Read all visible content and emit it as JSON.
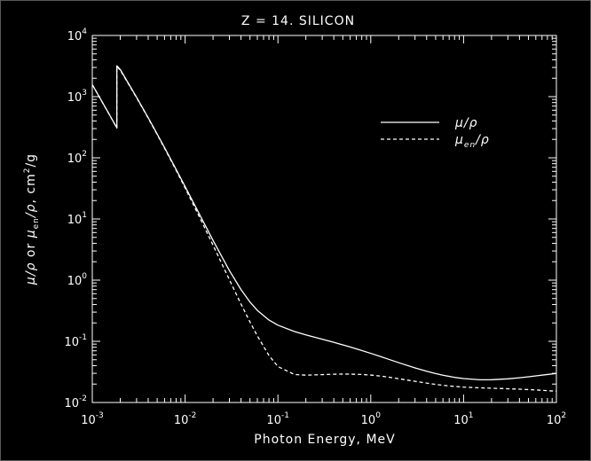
{
  "colors": {
    "background": "#000000",
    "foreground": "#ffffff"
  },
  "chart_data": {
    "type": "line",
    "title": "Z = 14.  SILICON",
    "xlabel": "Photon Energy, MeV",
    "ylabel": {
      "mu": "μ",
      "rho": "ρ",
      "or": "or",
      "en": "en",
      "units": "cm",
      "units_exp": "2",
      "units_tail": "/g"
    },
    "x_scale": "log",
    "y_scale": "log",
    "xlim": [
      0.001,
      100
    ],
    "ylim": [
      0.01,
      10000
    ],
    "x_ticks": [
      {
        "base": "10",
        "exp": "-3"
      },
      {
        "base": "10",
        "exp": "-2"
      },
      {
        "base": "10",
        "exp": "-1"
      },
      {
        "base": "10",
        "exp": "0"
      },
      {
        "base": "10",
        "exp": "1"
      },
      {
        "base": "10",
        "exp": "2"
      }
    ],
    "y_ticks": [
      {
        "base": "10",
        "exp": "-2"
      },
      {
        "base": "10",
        "exp": "-1"
      },
      {
        "base": "10",
        "exp": "0"
      },
      {
        "base": "10",
        "exp": "1"
      },
      {
        "base": "10",
        "exp": "2"
      },
      {
        "base": "10",
        "exp": "3"
      },
      {
        "base": "10",
        "exp": "4"
      }
    ],
    "legend": {
      "placement": "top-right",
      "entries": [
        {
          "mu": "μ",
          "sub": "",
          "rest": "/ρ",
          "style": "solid"
        },
        {
          "mu": "μ",
          "sub": "en",
          "rest": "/ρ",
          "style": "dashed"
        }
      ]
    },
    "series": [
      {
        "style": "solid",
        "points": [
          [
            0.001,
            1570
          ],
          [
            0.0015,
            535
          ],
          [
            0.001839,
            309
          ],
          [
            0.001839,
            3192
          ],
          [
            0.002,
            2777
          ],
          [
            0.003,
            978.4
          ],
          [
            0.004,
            452.9
          ],
          [
            0.005,
            245.0
          ],
          [
            0.006,
            147.0
          ],
          [
            0.008,
            64.68
          ],
          [
            0.01,
            33.89
          ],
          [
            0.015,
            10.34
          ],
          [
            0.02,
            4.464
          ],
          [
            0.03,
            1.436
          ],
          [
            0.04,
            0.7012
          ],
          [
            0.05,
            0.4385
          ],
          [
            0.06,
            0.3207
          ],
          [
            0.08,
            0.2228
          ],
          [
            0.1,
            0.1835
          ],
          [
            0.15,
            0.1448
          ],
          [
            0.2,
            0.1275
          ],
          [
            0.3,
            0.1082
          ],
          [
            0.4,
            0.09614
          ],
          [
            0.5,
            0.08748
          ],
          [
            0.6,
            0.08077
          ],
          [
            0.8,
            0.07082
          ],
          [
            1.0,
            0.06361
          ],
          [
            1.25,
            0.05688
          ],
          [
            1.5,
            0.05183
          ],
          [
            2.0,
            0.0448
          ],
          [
            3.0,
            0.03678
          ],
          [
            4.0,
            0.0324
          ],
          [
            5.0,
            0.02967
          ],
          [
            6.0,
            0.02788
          ],
          [
            8.0,
            0.02574
          ],
          [
            10.0,
            0.02462
          ],
          [
            15.0,
            0.02352
          ],
          [
            20.0,
            0.02355
          ],
          [
            30.0,
            0.02437
          ],
          [
            40.0,
            0.02535
          ],
          [
            50.0,
            0.0263
          ],
          [
            60.0,
            0.02718
          ],
          [
            80.0,
            0.02867
          ],
          [
            100.0,
            0.02987
          ]
        ]
      },
      {
        "style": "dashed",
        "points": [
          [
            0.001,
            1567
          ],
          [
            0.0015,
            533.1
          ],
          [
            0.001839,
            307
          ],
          [
            0.001839,
            3086
          ],
          [
            0.002,
            2715
          ],
          [
            0.003,
            961.1
          ],
          [
            0.004,
            445.1
          ],
          [
            0.005,
            240.2
          ],
          [
            0.006,
            143.7
          ],
          [
            0.008,
            62.5
          ],
          [
            0.01,
            32.14
          ],
          [
            0.015,
            9.242
          ],
          [
            0.02,
            3.722
          ],
          [
            0.03,
            1.016
          ],
          [
            0.04,
            0.4073
          ],
          [
            0.05,
            0.2071
          ],
          [
            0.06,
            0.1229
          ],
          [
            0.08,
            0.05869
          ],
          [
            0.1,
            0.03869
          ],
          [
            0.15,
            0.02875
          ],
          [
            0.2,
            0.02791
          ],
          [
            0.3,
            0.02855
          ],
          [
            0.4,
            0.029
          ],
          [
            0.5,
            0.02915
          ],
          [
            0.6,
            0.02909
          ],
          [
            0.8,
            0.02869
          ],
          [
            1.0,
            0.02806
          ],
          [
            1.25,
            0.02712
          ],
          [
            1.5,
            0.02617
          ],
          [
            2.0,
            0.02451
          ],
          [
            3.0,
            0.02219
          ],
          [
            4.0,
            0.02073
          ],
          [
            5.0,
            0.01976
          ],
          [
            6.0,
            0.0191
          ],
          [
            8.0,
            0.0183
          ],
          [
            10.0,
            0.01786
          ],
          [
            15.0,
            0.01735
          ],
          [
            20.0,
            0.01711
          ],
          [
            30.0,
            0.01678
          ],
          [
            40.0,
            0.01651
          ],
          [
            50.0,
            0.01626
          ],
          [
            60.0,
            0.01603
          ],
          [
            80.0,
            0.01562
          ],
          [
            100.0,
            0.01527
          ]
        ]
      }
    ]
  }
}
